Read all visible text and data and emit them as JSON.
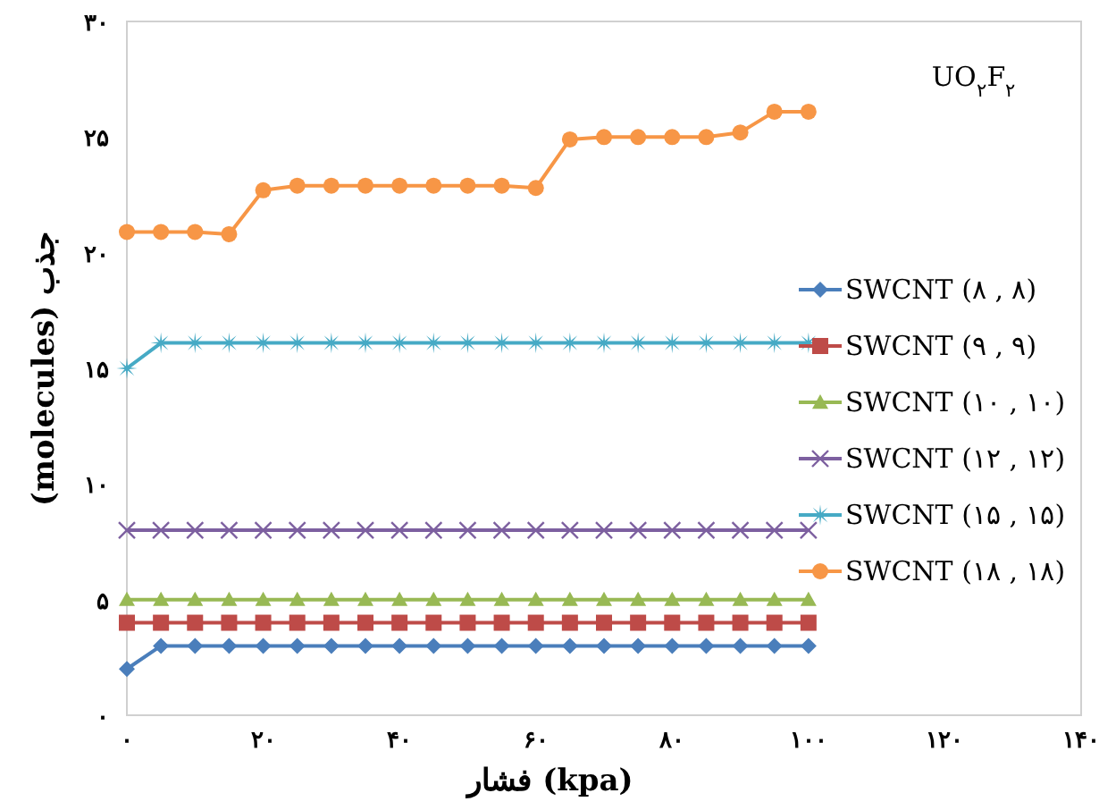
{
  "chart_data": {
    "type": "line",
    "title": "UO$_{۲}$F$_{۲}$",
    "xlabel": "فشار (kpa)",
    "ylabel": "(molecules) جذب",
    "x": [
      0,
      5,
      10,
      15,
      20,
      25,
      30,
      35,
      40,
      45,
      50,
      55,
      60,
      65,
      70,
      75,
      80,
      85,
      90,
      95,
      100
    ],
    "xlim": [
      0,
      140
    ],
    "xticks": [
      {
        "value": 0,
        "label": "۰"
      },
      {
        "value": 20,
        "label": "۲۰"
      },
      {
        "value": 40,
        "label": "۴۰"
      },
      {
        "value": 60,
        "label": "۶۰"
      },
      {
        "value": 80,
        "label": "۸۰"
      },
      {
        "value": 100,
        "label": "۱۰۰"
      },
      {
        "value": 120,
        "label": "۱۲۰"
      },
      {
        "value": 140,
        "label": "۱۴۰"
      }
    ],
    "ylim": [
      0,
      30
    ],
    "yticks": [
      {
        "value": 0,
        "label": "۰"
      },
      {
        "value": 5,
        "label": "۵"
      },
      {
        "value": 10,
        "label": "۱۰"
      },
      {
        "value": 15,
        "label": "۱۵"
      },
      {
        "value": 20,
        "label": "۲۰"
      },
      {
        "value": 25,
        "label": "۲۵"
      },
      {
        "value": 30,
        "label": "۳۰"
      }
    ],
    "grid": false,
    "legend": "right",
    "series": [
      {
        "name": "SWCNT (۸ , ۸)",
        "color": "#4a7ebb",
        "marker": "diamond",
        "values": [
          2,
          3,
          3,
          3,
          3,
          3,
          3,
          3,
          3,
          3,
          3,
          3,
          3,
          3,
          3,
          3,
          3,
          3,
          3,
          3,
          3
        ]
      },
      {
        "name": "SWCNT (۹ , ۹)",
        "color": "#be4b48",
        "marker": "square",
        "values": [
          4,
          4,
          4,
          4,
          4,
          4,
          4,
          4,
          4,
          4,
          4,
          4,
          4,
          4,
          4,
          4,
          4,
          4,
          4,
          4,
          4
        ]
      },
      {
        "name": "SWCNT (۱۰ , ۱۰)",
        "color": "#98b954",
        "marker": "triangle",
        "values": [
          5,
          5,
          5,
          5,
          5,
          5,
          5,
          5,
          5,
          5,
          5,
          5,
          5,
          5,
          5,
          5,
          5,
          5,
          5,
          5,
          5
        ]
      },
      {
        "name": "SWCNT (۱۲ , ۱۲)",
        "color": "#7d60a0",
        "marker": "cross",
        "values": [
          8,
          8,
          8,
          8,
          8,
          8,
          8,
          8,
          8,
          8,
          8,
          8,
          8,
          8,
          8,
          8,
          8,
          8,
          8,
          8,
          8
        ]
      },
      {
        "name": "SWCNT (۱۵ , ۱۵)",
        "color": "#46aac5",
        "marker": "star",
        "values": [
          15,
          16.1,
          16.1,
          16.1,
          16.1,
          16.1,
          16.1,
          16.1,
          16.1,
          16.1,
          16.1,
          16.1,
          16.1,
          16.1,
          16.1,
          16.1,
          16.1,
          16.1,
          16.1,
          16.1,
          16.1
        ]
      },
      {
        "name": "SWCNT (۱۸ , ۱۸)",
        "color": "#f79646",
        "marker": "circle",
        "values": [
          20.9,
          20.9,
          20.9,
          20.8,
          22.7,
          22.9,
          22.9,
          22.9,
          22.9,
          22.9,
          22.9,
          22.9,
          22.8,
          24.9,
          25,
          25,
          25,
          25,
          25.2,
          26.1,
          26.1
        ]
      }
    ]
  }
}
